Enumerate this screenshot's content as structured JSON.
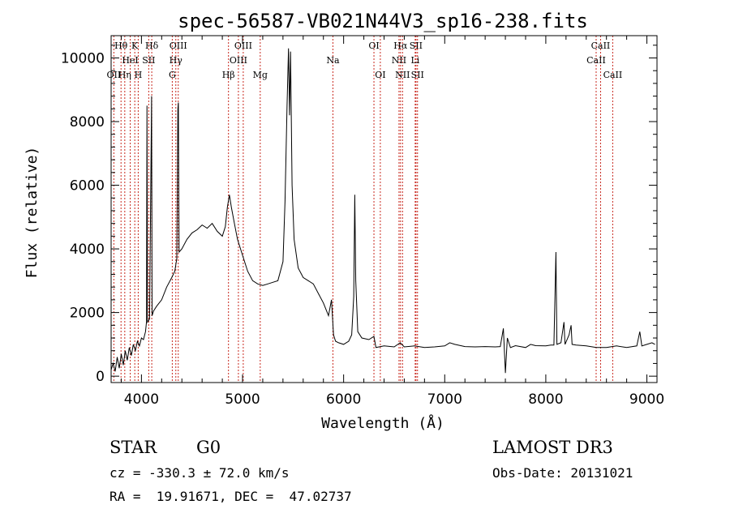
{
  "chart_data": {
    "type": "line",
    "title": "spec-56587-VB021N44V3_sp16-238.fits",
    "xlabel": "Wavelength (Å)",
    "ylabel": "Flux (relative)",
    "xlim": [
      3700,
      9100
    ],
    "ylim": [
      -200,
      10700
    ],
    "x_ticks": [
      4000,
      5000,
      6000,
      7000,
      8000,
      9000
    ],
    "y_ticks": [
      0,
      2000,
      4000,
      6000,
      8000,
      10000
    ],
    "grid": false,
    "series": [
      {
        "name": "spectrum",
        "points": [
          [
            3700,
            200
          ],
          [
            3720,
            400
          ],
          [
            3740,
            150
          ],
          [
            3760,
            600
          ],
          [
            3780,
            250
          ],
          [
            3800,
            700
          ],
          [
            3820,
            350
          ],
          [
            3840,
            800
          ],
          [
            3860,
            500
          ],
          [
            3880,
            900
          ],
          [
            3900,
            650
          ],
          [
            3920,
            1000
          ],
          [
            3940,
            800
          ],
          [
            3960,
            1100
          ],
          [
            3980,
            950
          ],
          [
            4000,
            1200
          ],
          [
            4020,
            1150
          ],
          [
            4040,
            1400
          ],
          [
            4050,
            1700
          ],
          [
            4055,
            8500
          ],
          [
            4060,
            1700
          ],
          [
            4080,
            1800
          ],
          [
            4100,
            8800
          ],
          [
            4105,
            1900
          ],
          [
            4120,
            2050
          ],
          [
            4150,
            2200
          ],
          [
            4200,
            2400
          ],
          [
            4250,
            2800
          ],
          [
            4300,
            3100
          ],
          [
            4330,
            3300
          ],
          [
            4350,
            3700
          ],
          [
            4360,
            8400
          ],
          [
            4365,
            8600
          ],
          [
            4372,
            3900
          ],
          [
            4400,
            4000
          ],
          [
            4450,
            4300
          ],
          [
            4500,
            4500
          ],
          [
            4550,
            4600
          ],
          [
            4600,
            4750
          ],
          [
            4650,
            4650
          ],
          [
            4700,
            4800
          ],
          [
            4750,
            4550
          ],
          [
            4800,
            4400
          ],
          [
            4830,
            4700
          ],
          [
            4850,
            5300
          ],
          [
            4870,
            5700
          ],
          [
            4890,
            5300
          ],
          [
            4920,
            4800
          ],
          [
            4950,
            4300
          ],
          [
            5000,
            3800
          ],
          [
            5050,
            3300
          ],
          [
            5100,
            3000
          ],
          [
            5150,
            2900
          ],
          [
            5200,
            2850
          ],
          [
            5250,
            2900
          ],
          [
            5300,
            2950
          ],
          [
            5350,
            3000
          ],
          [
            5400,
            3600
          ],
          [
            5420,
            5500
          ],
          [
            5440,
            8500
          ],
          [
            5455,
            10300
          ],
          [
            5465,
            8200
          ],
          [
            5475,
            10200
          ],
          [
            5490,
            6000
          ],
          [
            5510,
            4300
          ],
          [
            5550,
            3400
          ],
          [
            5600,
            3100
          ],
          [
            5650,
            3000
          ],
          [
            5700,
            2900
          ],
          [
            5750,
            2600
          ],
          [
            5800,
            2300
          ],
          [
            5850,
            1900
          ],
          [
            5880,
            2400
          ],
          [
            5900,
            1300
          ],
          [
            5920,
            1100
          ],
          [
            5950,
            1050
          ],
          [
            6000,
            1000
          ],
          [
            6050,
            1100
          ],
          [
            6080,
            1300
          ],
          [
            6100,
            2500
          ],
          [
            6110,
            5700
          ],
          [
            6120,
            3000
          ],
          [
            6140,
            1400
          ],
          [
            6180,
            1200
          ],
          [
            6250,
            1150
          ],
          [
            6300,
            1250
          ],
          [
            6320,
            900
          ],
          [
            6400,
            950
          ],
          [
            6500,
            920
          ],
          [
            6560,
            1050
          ],
          [
            6600,
            920
          ],
          [
            6700,
            950
          ],
          [
            6800,
            900
          ],
          [
            6900,
            920
          ],
          [
            7000,
            950
          ],
          [
            7050,
            1050
          ],
          [
            7100,
            1000
          ],
          [
            7200,
            930
          ],
          [
            7300,
            920
          ],
          [
            7400,
            930
          ],
          [
            7500,
            920
          ],
          [
            7550,
            930
          ],
          [
            7580,
            1500
          ],
          [
            7600,
            100
          ],
          [
            7620,
            1200
          ],
          [
            7650,
            900
          ],
          [
            7700,
            960
          ],
          [
            7800,
            900
          ],
          [
            7850,
            1000
          ],
          [
            7900,
            960
          ],
          [
            8000,
            950
          ],
          [
            8050,
            980
          ],
          [
            8080,
            980
          ],
          [
            8100,
            3900
          ],
          [
            8110,
            1000
          ],
          [
            8150,
            1050
          ],
          [
            8180,
            1700
          ],
          [
            8190,
            1000
          ],
          [
            8230,
            1300
          ],
          [
            8250,
            1600
          ],
          [
            8260,
            1000
          ],
          [
            8300,
            980
          ],
          [
            8400,
            950
          ],
          [
            8500,
            900
          ],
          [
            8600,
            900
          ],
          [
            8700,
            950
          ],
          [
            8800,
            900
          ],
          [
            8900,
            950
          ],
          [
            8930,
            1400
          ],
          [
            8950,
            950
          ],
          [
            9000,
            1000
          ],
          [
            9050,
            1050
          ],
          [
            9080,
            1000
          ]
        ]
      }
    ],
    "line_markers": [
      {
        "label": "OII",
        "wavelength": 3727,
        "row": 2
      },
      {
        "label": "Hθ",
        "wavelength": 3798,
        "row": 0
      },
      {
        "label": "Hη",
        "wavelength": 3835,
        "row": 2
      },
      {
        "label": "HeI",
        "wavelength": 3889,
        "row": 1
      },
      {
        "label": "K",
        "wavelength": 3934,
        "row": 0
      },
      {
        "label": "H",
        "wavelength": 3968,
        "row": 2
      },
      {
        "label": "SII",
        "wavelength": 4072,
        "row": 1
      },
      {
        "label": "Hδ",
        "wavelength": 4102,
        "row": 0
      },
      {
        "label": "G",
        "wavelength": 4305,
        "row": 2
      },
      {
        "label": "Hγ",
        "wavelength": 4340,
        "row": 1
      },
      {
        "label": "OIII",
        "wavelength": 4364,
        "row": 0
      },
      {
        "label": "Hβ",
        "wavelength": 4861,
        "row": 2
      },
      {
        "label": "OIII",
        "wavelength": 4959,
        "row": 1
      },
      {
        "label": "OIII",
        "wavelength": 5007,
        "row": 0
      },
      {
        "label": "Mg",
        "wavelength": 5175,
        "row": 2
      },
      {
        "label": "Na",
        "wavelength": 5894,
        "row": 1
      },
      {
        "label": "OI",
        "wavelength": 6300,
        "row": 0
      },
      {
        "label": "OI",
        "wavelength": 6363,
        "row": 2
      },
      {
        "label": "NII",
        "wavelength": 6548,
        "row": 1
      },
      {
        "label": "Hα",
        "wavelength": 6563,
        "row": 0
      },
      {
        "label": "NII",
        "wavelength": 6583,
        "row": 2
      },
      {
        "label": "SII",
        "wavelength": 6716,
        "row": 0
      },
      {
        "label": "Li",
        "wavelength": 6708,
        "row": 1
      },
      {
        "label": "SII",
        "wavelength": 6731,
        "row": 2
      },
      {
        "label": "CaII",
        "wavelength": 8498,
        "row": 1
      },
      {
        "label": "CaII",
        "wavelength": 8542,
        "row": 0
      },
      {
        "label": "CaII",
        "wavelength": 8662,
        "row": 2
      }
    ],
    "marker_color": "#c8281e"
  },
  "info": {
    "class_label": "STAR",
    "subclass_label": "G0",
    "survey": "LAMOST DR3",
    "redshift_line": "cz = -330.3 ± 72.0 km/s",
    "obs_date": "Obs-Date: 20131021",
    "coords": "RA =  19.91671, DEC =  47.02737"
  }
}
